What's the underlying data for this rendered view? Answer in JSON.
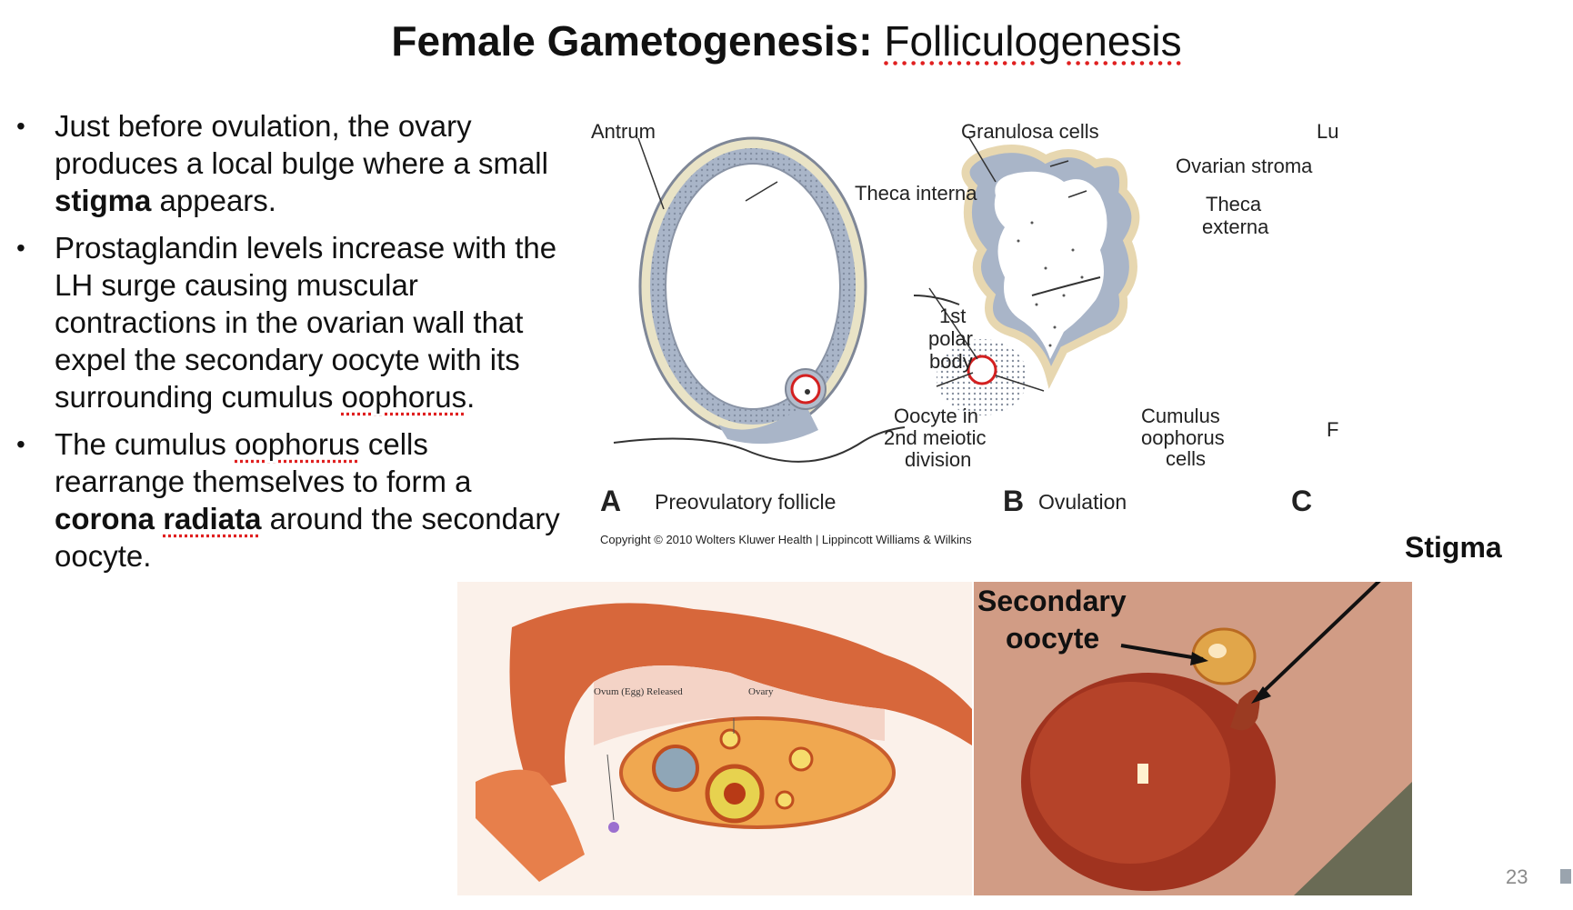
{
  "title": {
    "bold": "Female Gametogenesis:",
    "normal": "Folliculogenesis"
  },
  "bullets": [
    {
      "parts": [
        {
          "t": "Just before ovulation, the ovary produces a local bulge where a small "
        },
        {
          "t": "stigma",
          "b": true
        },
        {
          "t": " appears."
        }
      ]
    },
    {
      "parts": [
        {
          "t": "Prostaglandin levels increase with the LH surge causing muscular contractions in the ovarian wall that expel the secondary oocyte with its surrounding cumulus "
        },
        {
          "t": "oophorus",
          "u": true
        },
        {
          "t": "."
        }
      ]
    },
    {
      "parts": [
        {
          "t": "The cumulus "
        },
        {
          "t": "oophorus",
          "u": true
        },
        {
          "t": " cells rearrange themselves to form a "
        },
        {
          "t": "corona ",
          "b": true
        },
        {
          "t": "radiata",
          "b": true,
          "u": true
        },
        {
          "t": " around the secondary oocyte."
        }
      ]
    }
  ],
  "diagram": {
    "labels": {
      "antrum": "Antrum",
      "granulosa": "Granulosa cells",
      "lu": "Lu",
      "ovarian_stroma": "Ovarian stroma",
      "theca_interna": "Theca interna",
      "theca_externa_1": "Theca",
      "theca_externa_2": "externa",
      "polar_1": "1st",
      "polar_2": "polar",
      "polar_3": "body",
      "oocyte_1": "Oocyte in",
      "oocyte_2": "2nd meiotic",
      "oocyte_3": "division",
      "cumulus_1": "Cumulus",
      "cumulus_2": "oophorus",
      "cumulus_3": "cells",
      "f": "F"
    },
    "panels": {
      "a_letter": "A",
      "a_caption": "Preovulatory follicle",
      "b_letter": "B",
      "b_caption": "Ovulation",
      "c_letter": "C"
    },
    "copyright": "Copyright © 2010 Wolters Kluwer Health | Lippincott Williams & Wilkins"
  },
  "illustration": {
    "ovum_label": "Ovum (Egg) Released",
    "ovary_label": "Ovary"
  },
  "photo": {
    "secondary_1": "Secondary",
    "secondary_2": "oocyte"
  },
  "stigma_label": "Stigma",
  "page_number": "23"
}
